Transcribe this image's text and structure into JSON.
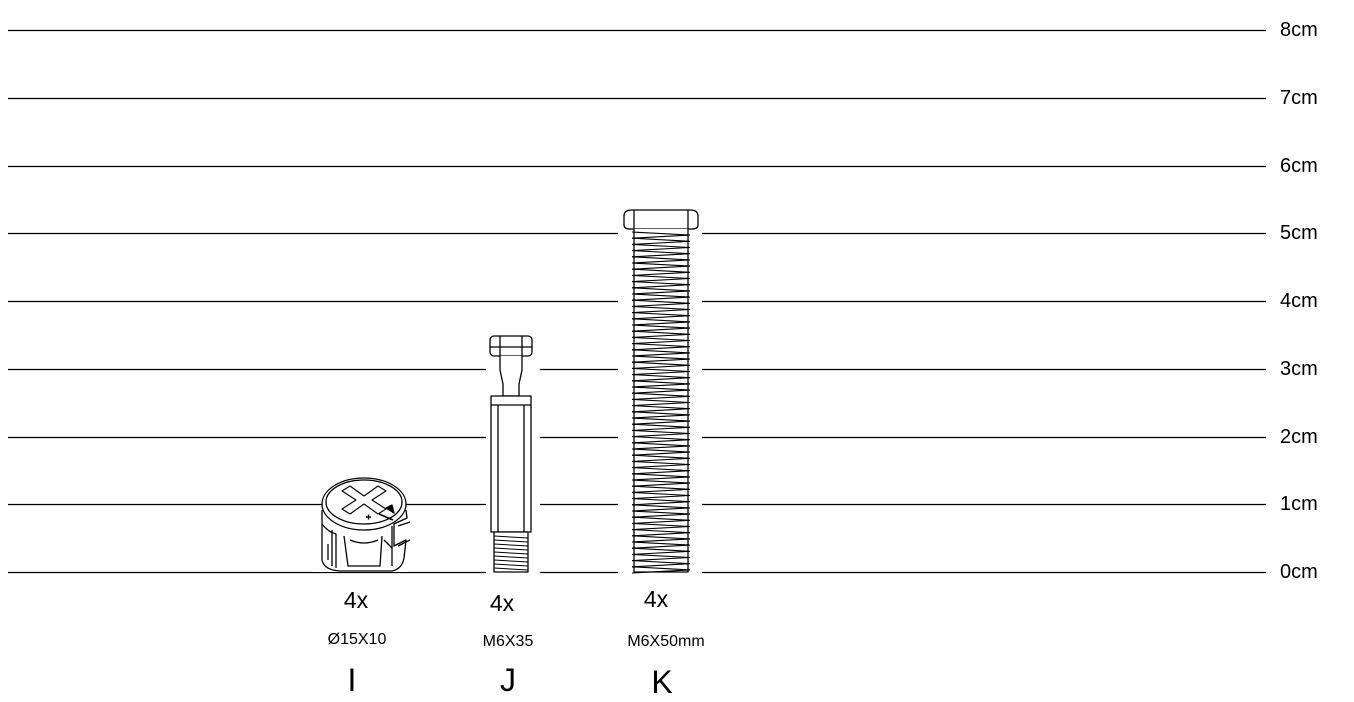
{
  "scale": {
    "unit": "cm",
    "labels": [
      "0cm",
      "1cm",
      "2cm",
      "3cm",
      "4cm",
      "5cm",
      "6cm",
      "7cm",
      "8cm"
    ]
  },
  "parts": [
    {
      "quantity": "4x",
      "size": "Ø15X10",
      "letter": "I",
      "icon": "cam-lock-nut-icon"
    },
    {
      "quantity": "4x",
      "size": "M6X35",
      "letter": "J",
      "icon": "cam-dowel-bolt-icon"
    },
    {
      "quantity": "4x",
      "size": "M6X50mm",
      "letter": "K",
      "icon": "machine-screw-icon"
    }
  ]
}
